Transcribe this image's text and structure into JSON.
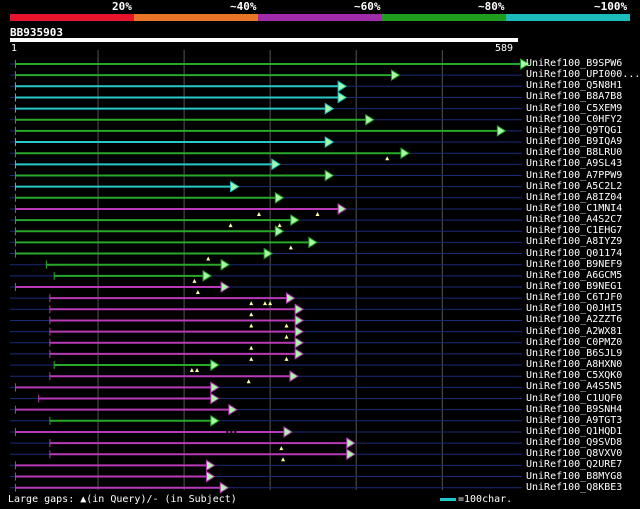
{
  "identity_scale": {
    "labels": [
      "20%",
      "~40%",
      "~60%",
      "~80%",
      "~100%"
    ],
    "segments": [
      {
        "color": "#e8132d"
      },
      {
        "color": "#e87528"
      },
      {
        "color": "#a02cab"
      },
      {
        "color": "#1f9e1f"
      },
      {
        "color": "#1cbcbc"
      }
    ]
  },
  "query": {
    "id": "BB935903",
    "start": "1",
    "end": "589",
    "length": 589
  },
  "colors": {
    "c": "#28c8c8",
    "g": "#28a828",
    "m": "#b83ab8",
    "arrow": "#a8f8a8",
    "grid": "#555555",
    "row_line": "#1a2a78"
  },
  "hits": [
    {
      "name": "UniRef100_B9SPW6",
      "color": "g",
      "start": 5,
      "end": 592,
      "gaps": [],
      "marks": []
    },
    {
      "name": "UniRef100_UPI000...",
      "color": "g",
      "start": 5,
      "end": 442,
      "gaps": [],
      "marks": []
    },
    {
      "name": "UniRef100_Q5N8H1",
      "color": "c",
      "start": 5,
      "end": 380,
      "gaps": [],
      "marks": []
    },
    {
      "name": "UniRef100_B8A7B8",
      "color": "c",
      "start": 5,
      "end": 380,
      "gaps": [],
      "marks": []
    },
    {
      "name": "UniRef100_C5XEM9",
      "color": "c",
      "start": 5,
      "end": 365,
      "gaps": [],
      "marks": []
    },
    {
      "name": "UniRef100_C0HFY2",
      "color": "g",
      "start": 5,
      "end": 412,
      "gaps": [],
      "marks": []
    },
    {
      "name": "UniRef100_Q9TQG1",
      "color": "g",
      "start": 5,
      "end": 565,
      "gaps": [],
      "marks": []
    },
    {
      "name": "UniRef100_B9IQA9",
      "color": "c",
      "start": 5,
      "end": 365,
      "gaps": [],
      "marks": []
    },
    {
      "name": "UniRef100_B8LRU0",
      "color": "g",
      "start": 5,
      "end": 453,
      "gaps": [],
      "marks": [
        437
      ]
    },
    {
      "name": "UniRef100_A9SL43",
      "color": "c",
      "start": 5,
      "end": 303,
      "gaps": [],
      "marks": []
    },
    {
      "name": "UniRef100_A7PPW9",
      "color": "g",
      "start": 5,
      "end": 365,
      "gaps": [],
      "marks": []
    },
    {
      "name": "UniRef100_A5C2L2",
      "color": "c",
      "start": 5,
      "end": 255,
      "gaps": [],
      "marks": []
    },
    {
      "name": "UniRef100_A8IZ04",
      "color": "g",
      "start": 5,
      "end": 307,
      "gaps": [],
      "marks": []
    },
    {
      "name": "UniRef100_C1MNI4",
      "color": "m",
      "start": 5,
      "end": 380,
      "gaps": [],
      "marks": [
        288,
        356
      ]
    },
    {
      "name": "UniRef100_A4S2C7",
      "color": "g",
      "start": 5,
      "end": 325,
      "gaps": [],
      "marks": [
        255,
        312
      ]
    },
    {
      "name": "UniRef100_C1EHG7",
      "color": "g",
      "start": 5,
      "end": 307,
      "gaps": [],
      "marks": []
    },
    {
      "name": "UniRef100_A8IYZ9",
      "color": "g",
      "start": 5,
      "end": 346,
      "gaps": [],
      "marks": [
        325
      ]
    },
    {
      "name": "UniRef100_Q01174",
      "color": "g",
      "start": 5,
      "end": 294,
      "gaps": [],
      "marks": [
        229
      ]
    },
    {
      "name": "UniRef100_B9NEF9",
      "color": "g",
      "start": 41,
      "end": 244,
      "gaps": [],
      "marks": []
    },
    {
      "name": "UniRef100_A6GCM5",
      "color": "g",
      "start": 50,
      "end": 223,
      "gaps": [],
      "marks": [
        213
      ]
    },
    {
      "name": "UniRef100_B9NEG1",
      "color": "m",
      "start": 5,
      "end": 244,
      "gaps": [],
      "marks": [
        217
      ]
    },
    {
      "name": "UniRef100_C6TJF0",
      "color": "m",
      "start": 45,
      "end": 320,
      "gaps": [],
      "marks": [
        279,
        295,
        301
      ]
    },
    {
      "name": "UniRef100_Q0JHI5",
      "color": "m",
      "start": 45,
      "end": 330,
      "gaps": [],
      "marks": [
        279
      ]
    },
    {
      "name": "UniRef100_A2ZZT6",
      "color": "m",
      "start": 45,
      "end": 330,
      "gaps": [],
      "marks": [
        279,
        320
      ]
    },
    {
      "name": "UniRef100_A2WX81",
      "color": "m",
      "start": 45,
      "end": 330,
      "gaps": [],
      "marks": [
        320
      ]
    },
    {
      "name": "UniRef100_C0PMZ0",
      "color": "m",
      "start": 45,
      "end": 330,
      "gaps": [],
      "marks": [
        279
      ]
    },
    {
      "name": "UniRef100_B6SJL9",
      "color": "m",
      "start": 45,
      "end": 330,
      "gaps": [],
      "marks": [
        279,
        320
      ]
    },
    {
      "name": "UniRef100_A8HXN0",
      "color": "g",
      "start": 50,
      "end": 232,
      "gaps": [],
      "marks": [
        210,
        216
      ]
    },
    {
      "name": "UniRef100_C5XQK0",
      "color": "m",
      "start": 45,
      "end": 324,
      "gaps": [],
      "marks": [
        276
      ]
    },
    {
      "name": "UniRef100_A4S5N5",
      "color": "m",
      "start": 5,
      "end": 232,
      "gaps": [],
      "marks": []
    },
    {
      "name": "UniRef100_C1UQF0",
      "color": "m",
      "start": 32,
      "end": 232,
      "gaps": [],
      "marks": []
    },
    {
      "name": "UniRef100_B9SNH4",
      "color": "m",
      "start": 5,
      "end": 253,
      "gaps": [],
      "marks": []
    },
    {
      "name": "UniRef100_A9TGT3",
      "color": "g",
      "start": 45,
      "end": 232,
      "gaps": [],
      "marks": []
    },
    {
      "name": "UniRef100_Q1HQD1",
      "color": "m",
      "start": 5,
      "end": 317,
      "gaps": [
        [
          250,
          262
        ]
      ],
      "marks": []
    },
    {
      "name": "UniRef100_Q9SVD8",
      "color": "m",
      "start": 45,
      "end": 390,
      "gaps": [],
      "marks": [
        314
      ]
    },
    {
      "name": "UniRef100_Q8VXV0",
      "color": "m",
      "start": 45,
      "end": 390,
      "gaps": [],
      "marks": [
        316
      ]
    },
    {
      "name": "UniRef100_Q2URE7",
      "color": "m",
      "start": 5,
      "end": 227,
      "gaps": [],
      "marks": []
    },
    {
      "name": "UniRef100_B8MYG8",
      "color": "m",
      "start": 5,
      "end": 227,
      "gaps": [],
      "marks": []
    },
    {
      "name": "UniRef100_Q8KBE3",
      "color": "m",
      "start": 5,
      "end": 243,
      "gaps": [],
      "marks": []
    }
  ],
  "legend": {
    "gaps_text": "Large gaps: ▲(in Query)/- (in Subject)",
    "chars_text": "=100char."
  }
}
